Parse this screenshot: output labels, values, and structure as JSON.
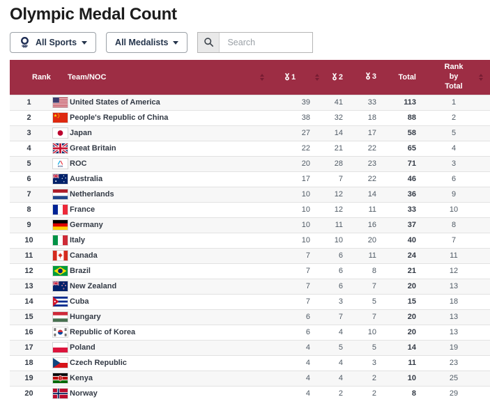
{
  "page": {
    "title": "Olympic Medal Count"
  },
  "filters": {
    "sports": {
      "label": "All Sports",
      "icon": "olympic-emblem-icon",
      "caret": "chevron-down-icon"
    },
    "medalists": {
      "label": "All Medalists",
      "caret": "chevron-down-icon"
    },
    "search": {
      "placeholder": "Search",
      "icon": "search-icon"
    }
  },
  "colors": {
    "header_bg": "#9d2d44",
    "sort_icon": "#771c32",
    "row_alt_bg": "#f7f7f7",
    "row_border": "#e2e2e2",
    "text_dark": "#333a45",
    "text_number": "#4f5a65"
  },
  "table": {
    "header": {
      "rank": "Rank",
      "team": "Team/NOC",
      "gold": "1",
      "silver": "2",
      "bronze": "3",
      "total": "Total",
      "rank_by_total": "Rank by Total",
      "medal_icon": "medal-icon",
      "sort_icon": "sort-arrows-icon"
    },
    "rows": [
      {
        "rank": 1,
        "flag": "us",
        "team": "United States of America",
        "gold": 39,
        "silver": 41,
        "bronze": 33,
        "total": 113,
        "rank_by_total": 1
      },
      {
        "rank": 2,
        "flag": "cn",
        "team": "People's Republic of China",
        "gold": 38,
        "silver": 32,
        "bronze": 18,
        "total": 88,
        "rank_by_total": 2
      },
      {
        "rank": 3,
        "flag": "jp",
        "team": "Japan",
        "gold": 27,
        "silver": 14,
        "bronze": 17,
        "total": 58,
        "rank_by_total": 5
      },
      {
        "rank": 4,
        "flag": "gb",
        "team": "Great Britain",
        "gold": 22,
        "silver": 21,
        "bronze": 22,
        "total": 65,
        "rank_by_total": 4
      },
      {
        "rank": 5,
        "flag": "roc",
        "team": "ROC",
        "gold": 20,
        "silver": 28,
        "bronze": 23,
        "total": 71,
        "rank_by_total": 3
      },
      {
        "rank": 6,
        "flag": "au",
        "team": "Australia",
        "gold": 17,
        "silver": 7,
        "bronze": 22,
        "total": 46,
        "rank_by_total": 6
      },
      {
        "rank": 7,
        "flag": "nl",
        "team": "Netherlands",
        "gold": 10,
        "silver": 12,
        "bronze": 14,
        "total": 36,
        "rank_by_total": 9
      },
      {
        "rank": 8,
        "flag": "fr",
        "team": "France",
        "gold": 10,
        "silver": 12,
        "bronze": 11,
        "total": 33,
        "rank_by_total": 10
      },
      {
        "rank": 9,
        "flag": "de",
        "team": "Germany",
        "gold": 10,
        "silver": 11,
        "bronze": 16,
        "total": 37,
        "rank_by_total": 8
      },
      {
        "rank": 10,
        "flag": "it",
        "team": "Italy",
        "gold": 10,
        "silver": 10,
        "bronze": 20,
        "total": 40,
        "rank_by_total": 7
      },
      {
        "rank": 11,
        "flag": "ca",
        "team": "Canada",
        "gold": 7,
        "silver": 6,
        "bronze": 11,
        "total": 24,
        "rank_by_total": 11
      },
      {
        "rank": 12,
        "flag": "br",
        "team": "Brazil",
        "gold": 7,
        "silver": 6,
        "bronze": 8,
        "total": 21,
        "rank_by_total": 12
      },
      {
        "rank": 13,
        "flag": "nz",
        "team": "New Zealand",
        "gold": 7,
        "silver": 6,
        "bronze": 7,
        "total": 20,
        "rank_by_total": 13
      },
      {
        "rank": 14,
        "flag": "cu",
        "team": "Cuba",
        "gold": 7,
        "silver": 3,
        "bronze": 5,
        "total": 15,
        "rank_by_total": 18
      },
      {
        "rank": 15,
        "flag": "hu",
        "team": "Hungary",
        "gold": 6,
        "silver": 7,
        "bronze": 7,
        "total": 20,
        "rank_by_total": 13
      },
      {
        "rank": 16,
        "flag": "kr",
        "team": "Republic of Korea",
        "gold": 6,
        "silver": 4,
        "bronze": 10,
        "total": 20,
        "rank_by_total": 13
      },
      {
        "rank": 17,
        "flag": "pl",
        "team": "Poland",
        "gold": 4,
        "silver": 5,
        "bronze": 5,
        "total": 14,
        "rank_by_total": 19
      },
      {
        "rank": 18,
        "flag": "cz",
        "team": "Czech Republic",
        "gold": 4,
        "silver": 4,
        "bronze": 3,
        "total": 11,
        "rank_by_total": 23
      },
      {
        "rank": 19,
        "flag": "ke",
        "team": "Kenya",
        "gold": 4,
        "silver": 4,
        "bronze": 2,
        "total": 10,
        "rank_by_total": 25
      },
      {
        "rank": 20,
        "flag": "no",
        "team": "Norway",
        "gold": 4,
        "silver": 2,
        "bronze": 2,
        "total": 8,
        "rank_by_total": 29
      }
    ]
  }
}
